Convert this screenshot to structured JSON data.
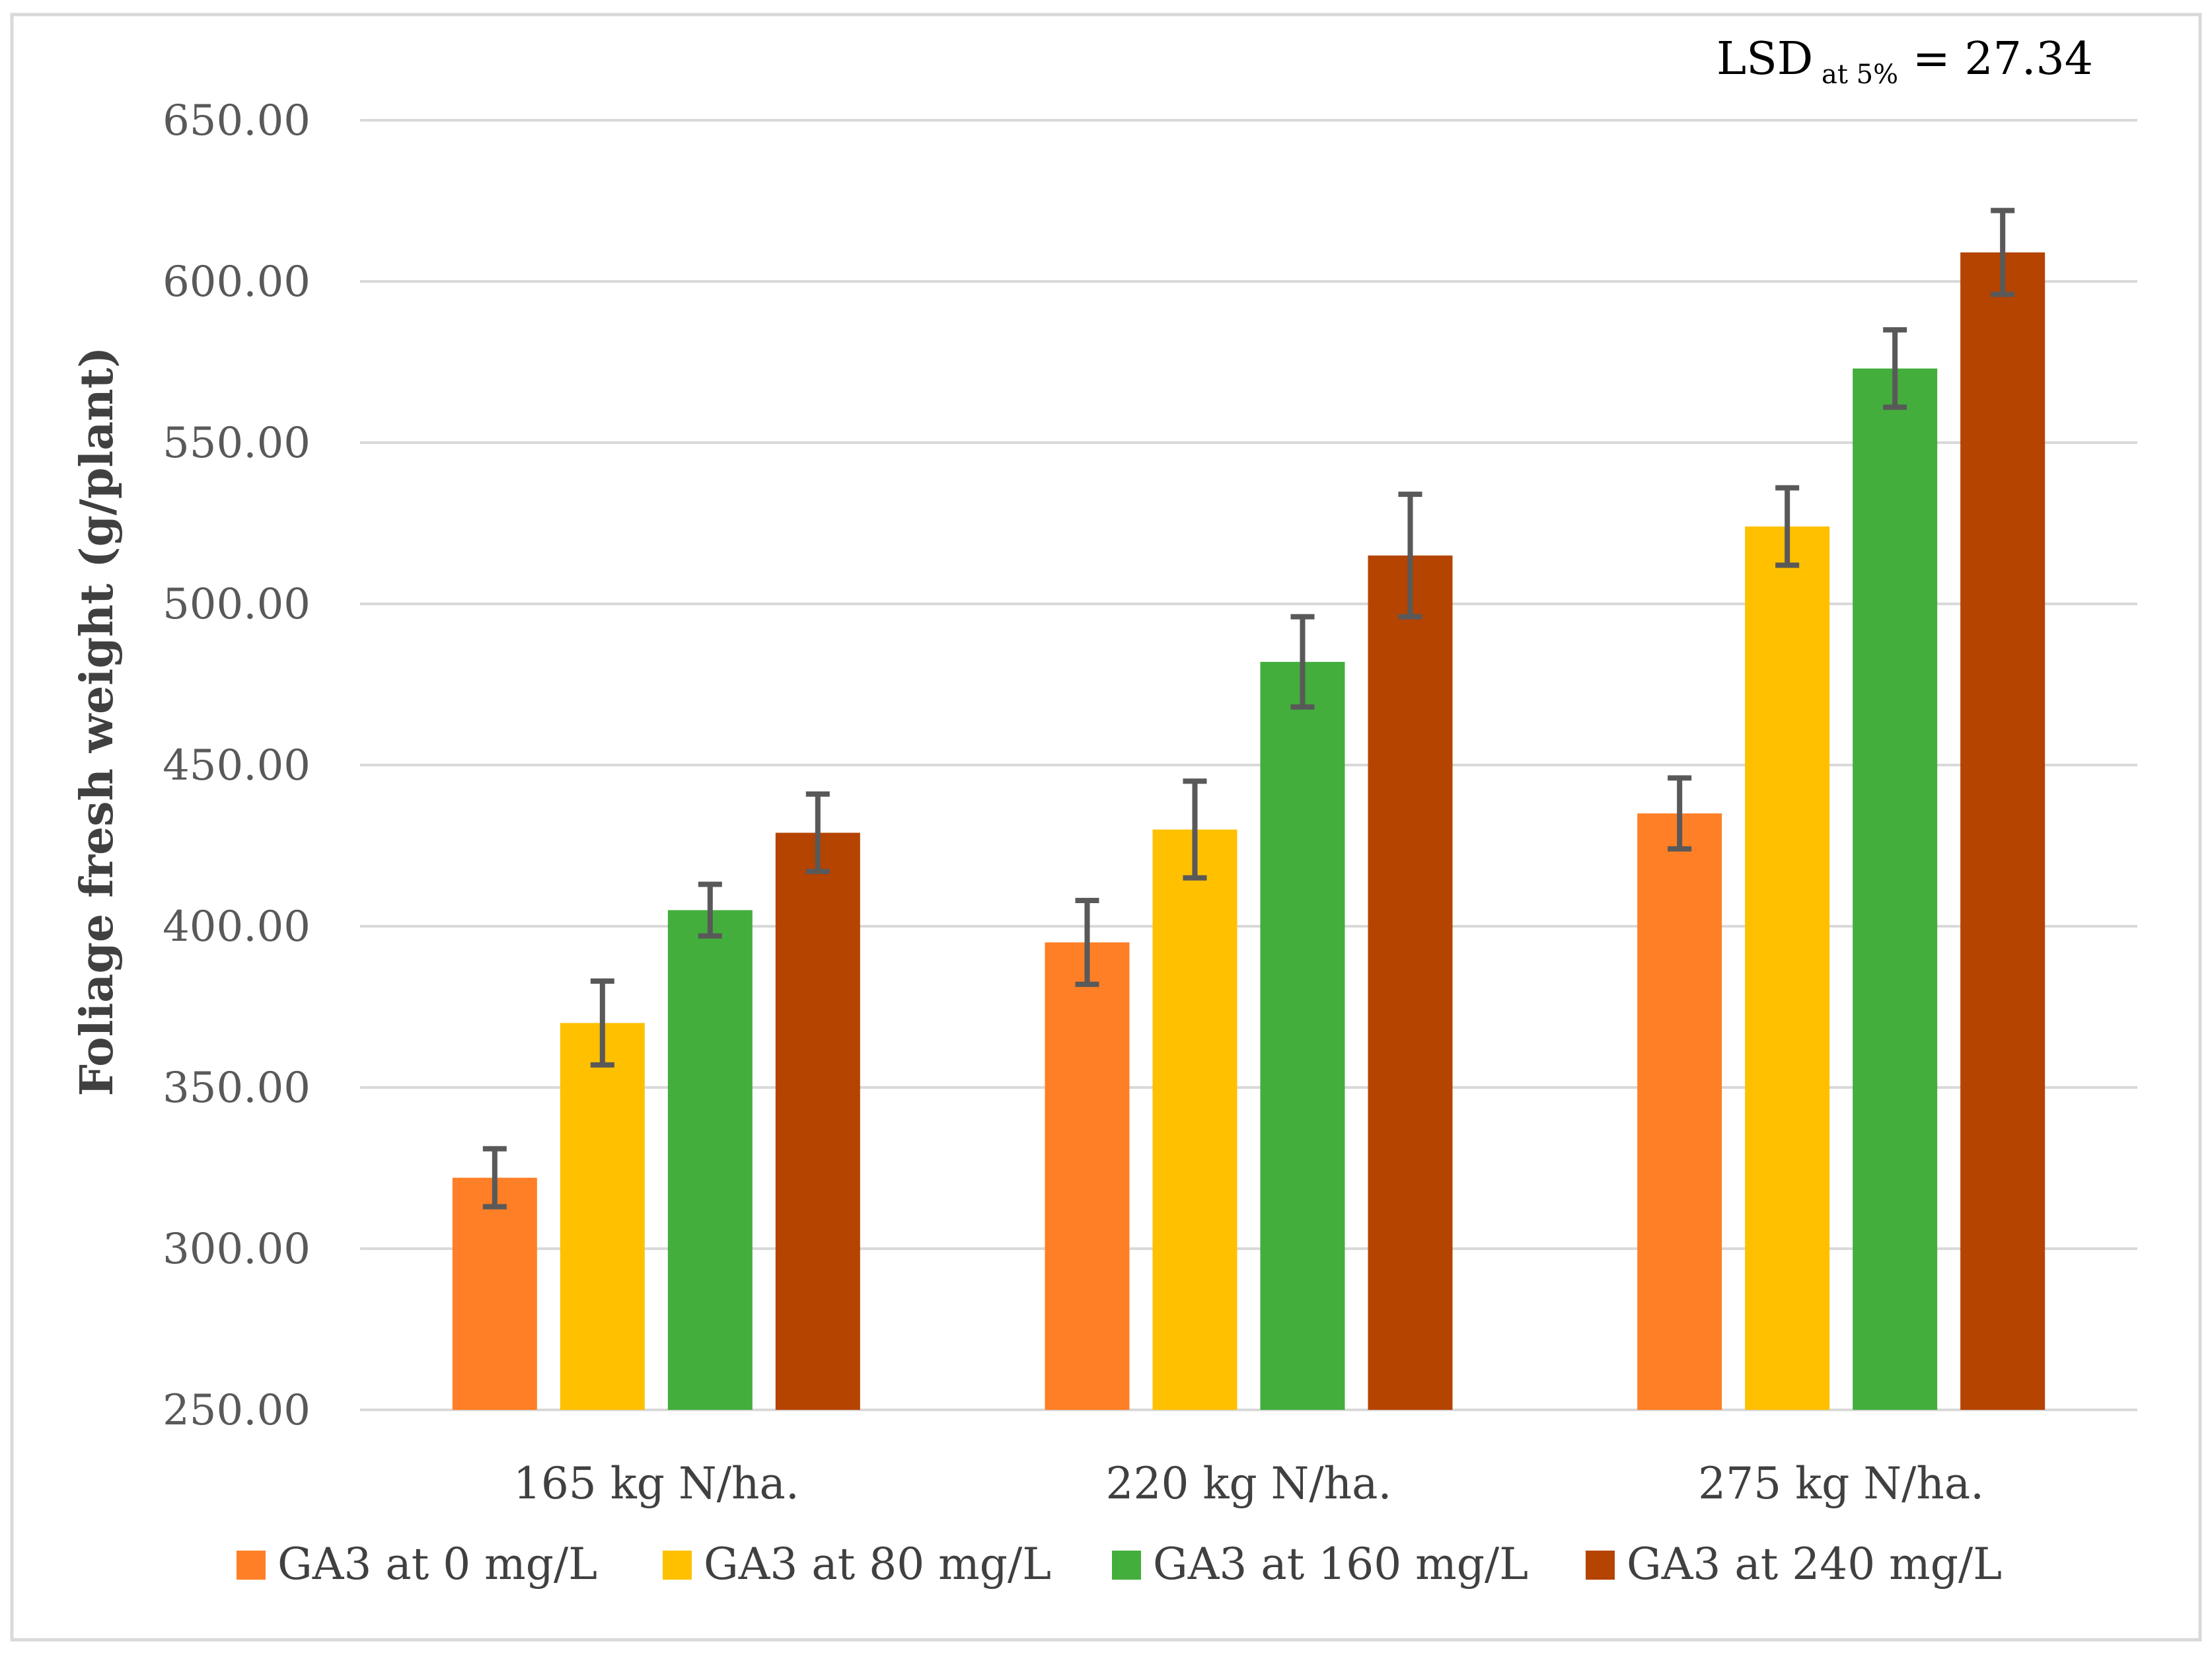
{
  "chart_data": {
    "type": "bar",
    "title": "",
    "xlabel": "",
    "ylabel": "Foliage  fresh weight (g/plant)",
    "ylim": [
      250,
      650
    ],
    "yticks": [
      "250.00",
      "300.00",
      "350.00",
      "400.00",
      "450.00",
      "500.00",
      "550.00",
      "600.00",
      "650.00"
    ],
    "ytick_values": [
      250,
      300,
      350,
      400,
      450,
      500,
      550,
      600,
      650
    ],
    "grid": true,
    "legend_position": "bottom",
    "categories": [
      "165 kg N/ha.",
      "220 kg N/ha.",
      "275 kg N/ha."
    ],
    "series": [
      {
        "name": "GA3 at 0 mg/L",
        "color": "#FF7F27",
        "values": [
          322,
          395,
          435
        ],
        "errors": [
          9,
          13,
          11
        ]
      },
      {
        "name": "GA3 at 80 mg/L",
        "color": "#FFC000",
        "values": [
          370,
          430,
          524
        ],
        "errors": [
          13,
          15,
          12
        ]
      },
      {
        "name": "GA3 at 160 mg/L",
        "color": "#43AE3C",
        "values": [
          405,
          482,
          573
        ],
        "errors": [
          8,
          14,
          12
        ]
      },
      {
        "name": "GA3 at 240 mg/L",
        "color": "#B54400",
        "values": [
          429,
          515,
          609
        ],
        "errors": [
          12,
          19,
          13
        ]
      }
    ],
    "annotation": {
      "lsd_prefix": "LSD",
      "lsd_subscript": " at 5%",
      "lsd_suffix": " = 27.34"
    },
    "colors": {
      "grid": "#D9D9D9",
      "error_bar": "#595959",
      "frame": "#D9D9D9"
    }
  }
}
